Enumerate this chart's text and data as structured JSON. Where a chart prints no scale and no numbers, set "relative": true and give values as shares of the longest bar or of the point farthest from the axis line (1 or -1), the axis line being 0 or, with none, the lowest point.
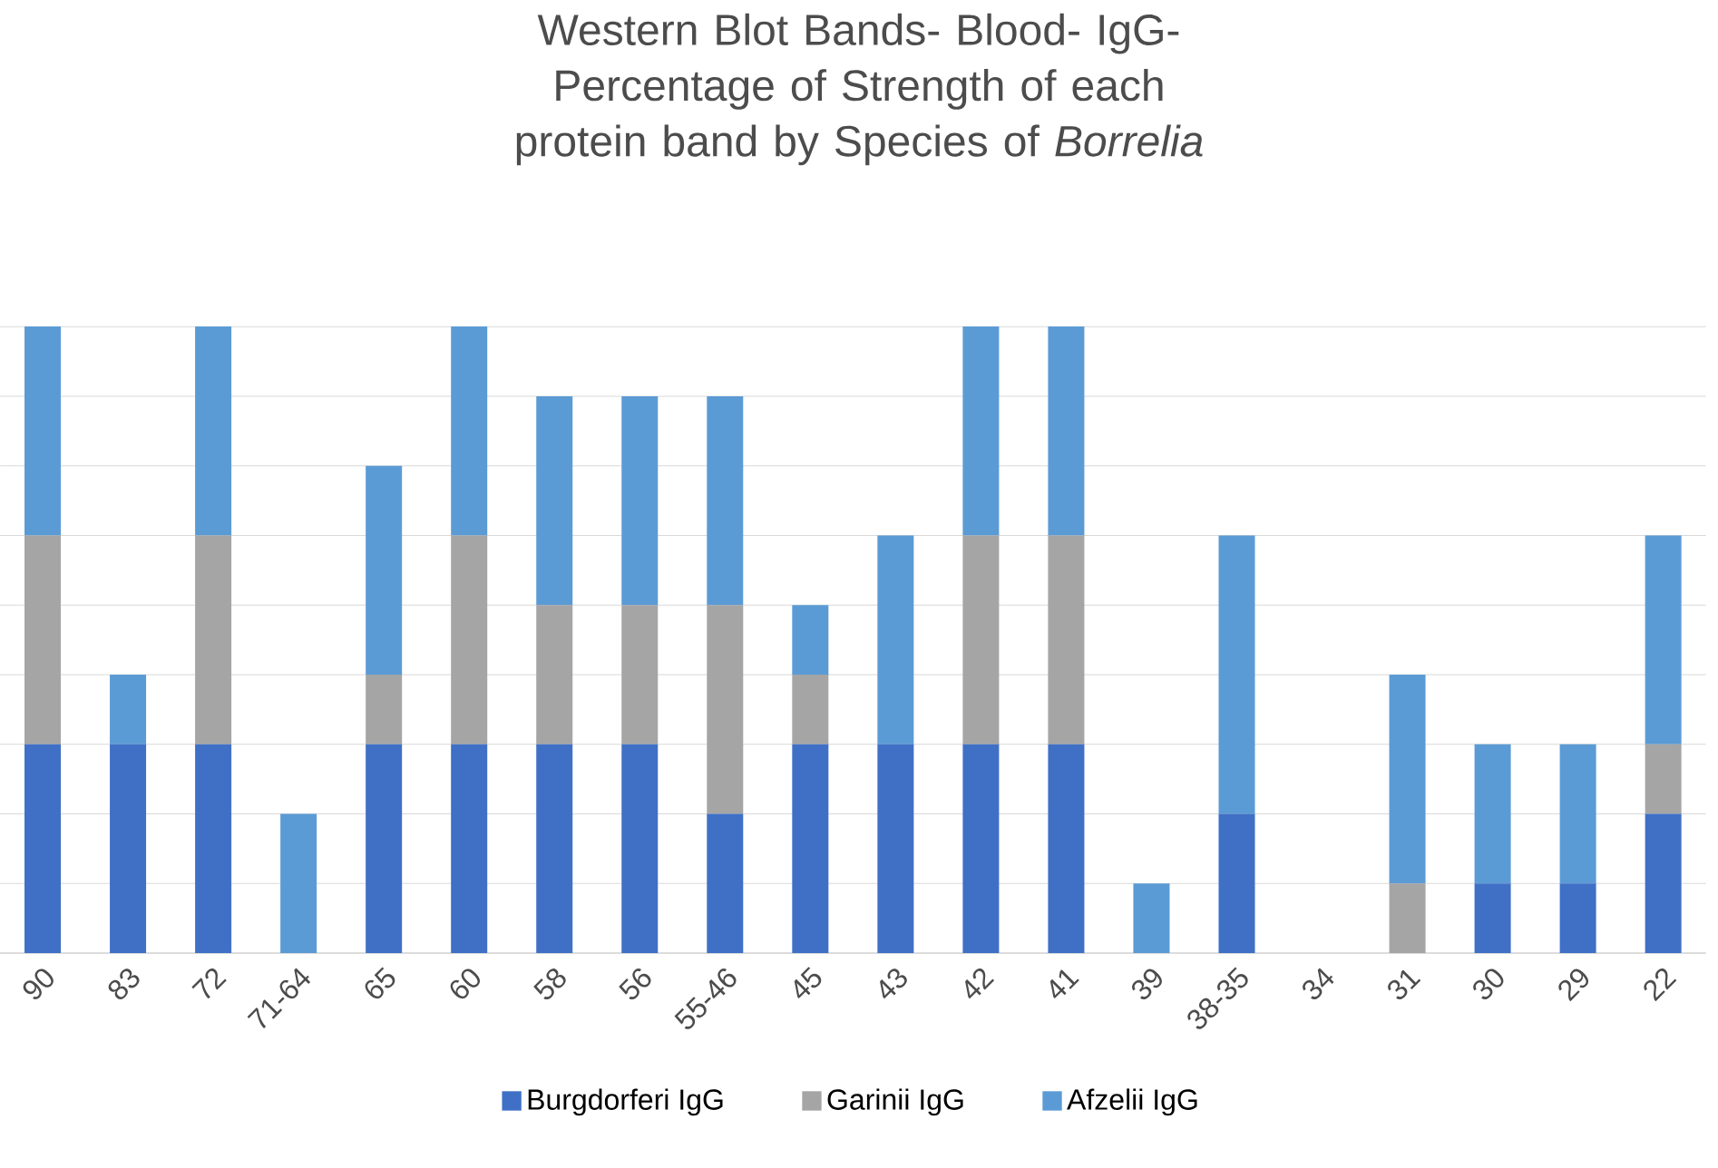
{
  "chart_data": {
    "type": "bar",
    "stacked": true,
    "relative": true,
    "title": "Western Blot Bands- Blood- IgG- Percentage of Strength of each protein band by Species of *Borrelia*",
    "categories": [
      "90",
      "83",
      "72",
      "71-64",
      "65",
      "60",
      "58",
      "56",
      "55-46",
      "45",
      "43",
      "42",
      "41",
      "39",
      "38-35",
      "34",
      "31",
      "30",
      "29",
      "22"
    ],
    "series": [
      {
        "name": "Burgdorferi IgG",
        "color": "#3f70c6",
        "values": [
          0.3333,
          0.3333,
          0.3333,
          null,
          0.3333,
          0.3333,
          0.3333,
          0.3333,
          0.2222,
          0.3333,
          0.3333,
          0.3333,
          0.3333,
          null,
          0.2222,
          null,
          null,
          0.1111,
          0.1111,
          0.2222
        ]
      },
      {
        "name": "Garinii IgG",
        "color": "#a5a5a5",
        "values": [
          0.3333,
          null,
          0.3333,
          null,
          0.1111,
          0.3333,
          0.2222,
          0.2222,
          0.3333,
          0.1111,
          null,
          0.3333,
          0.3333,
          null,
          null,
          null,
          0.1111,
          null,
          null,
          0.1111
        ]
      },
      {
        "name": "Afzelii IgG",
        "color": "#5b9bd5",
        "values": [
          0.3334,
          0.1111,
          0.3334,
          0.2222,
          0.3333,
          0.3334,
          0.3334,
          0.3334,
          0.3334,
          0.1111,
          0.3333,
          0.3334,
          0.3334,
          0.1111,
          0.4444,
          null,
          0.3333,
          0.2222,
          0.2222,
          0.3333
        ]
      }
    ],
    "grid": "y",
    "legend": "bottom"
  }
}
